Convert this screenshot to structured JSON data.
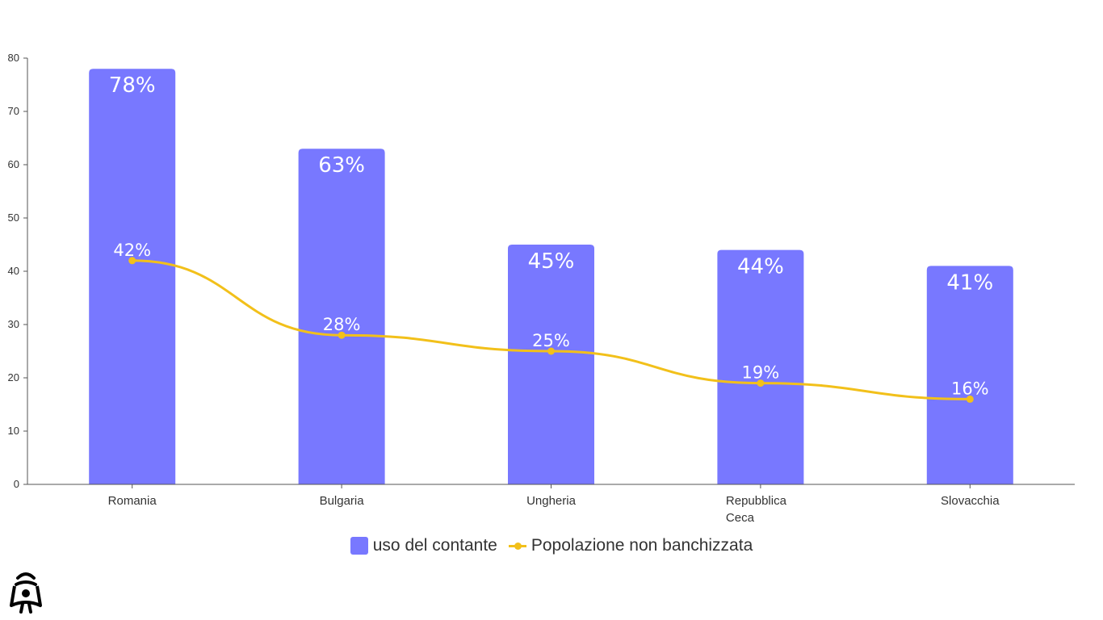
{
  "colors": {
    "bar": "#7878ff",
    "line": "#f2c01a",
    "axis": "#555555"
  },
  "chart_data": {
    "type": "bar",
    "categories": [
      "Romania",
      "Bulgaria",
      "Ungheria",
      "Repubblica Ceca",
      "Slovacchia"
    ],
    "series": [
      {
        "name": "uso del contante",
        "type": "bar",
        "values": [
          78,
          63,
          45,
          44,
          41
        ],
        "labels": [
          "78%",
          "63%",
          "45%",
          "44%",
          "41%"
        ]
      },
      {
        "name": "Popolazione non banchizzata",
        "type": "line",
        "values": [
          42,
          28,
          25,
          19,
          16
        ],
        "labels": [
          "42%",
          "28%",
          "25%",
          "19%",
          "16%"
        ]
      }
    ],
    "yticks": [
      "0",
      "10",
      "20",
      "30",
      "40",
      "50",
      "60",
      "70",
      "80"
    ],
    "ylim": [
      0,
      80
    ],
    "legend": "bottom-center",
    "grid": false
  },
  "logo": {
    "icon": "mascot-logo-icon"
  }
}
